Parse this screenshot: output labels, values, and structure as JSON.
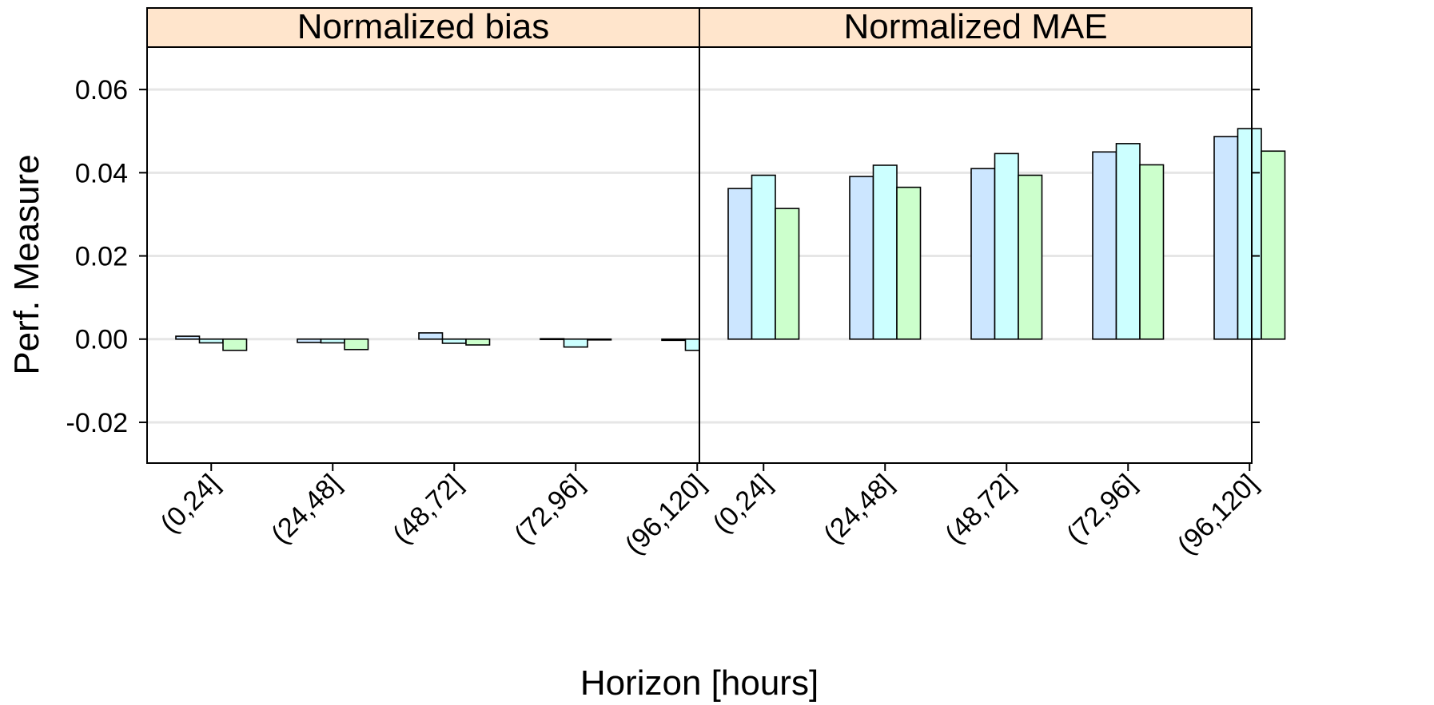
{
  "chart_data": {
    "type": "bar",
    "panels": [
      {
        "title": "Normalized bias",
        "categories": [
          "(0,24]",
          "(24,48]",
          "(48,72]",
          "(72,96]",
          "(96,120]"
        ],
        "series": [
          {
            "values": [
              0.0007,
              -0.0008,
              0.0015,
              0.0001,
              -0.0003
            ]
          },
          {
            "values": [
              -0.0009,
              -0.0009,
              -0.001,
              -0.0019,
              -0.0027
            ]
          },
          {
            "values": [
              -0.0027,
              -0.0025,
              -0.0014,
              -0.0002,
              -0.0015
            ]
          }
        ]
      },
      {
        "title": "Normalized MAE",
        "categories": [
          "(0,24]",
          "(24,48]",
          "(48,72]",
          "(72,96]",
          "(96,120]"
        ],
        "series": [
          {
            "values": [
              0.0362,
              0.0391,
              0.041,
              0.045,
              0.0487
            ]
          },
          {
            "values": [
              0.0394,
              0.0418,
              0.0446,
              0.047,
              0.0506
            ]
          },
          {
            "values": [
              0.0314,
              0.0365,
              0.0394,
              0.0419,
              0.0452
            ]
          }
        ]
      }
    ],
    "xlabel": "Horizon [hours]",
    "ylabel": "Perf. Measure",
    "ylim": [
      -0.0298,
      0.0702
    ],
    "yticks": [
      -0.02,
      0.0,
      0.02,
      0.04,
      0.06
    ],
    "ytick_labels": [
      "-0.02",
      "0.00",
      "0.02",
      "0.04",
      "0.06"
    ],
    "series_colors": [
      "#cce6ff",
      "#ccffff",
      "#ccffcc"
    ],
    "strip_color": "#ffe5cc",
    "grid": true,
    "legend": false
  }
}
